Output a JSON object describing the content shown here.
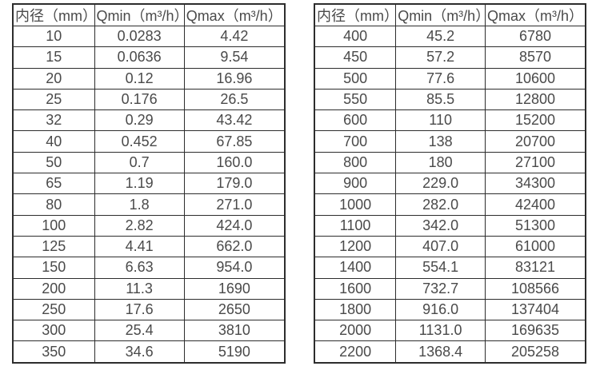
{
  "page": {
    "background_color": "#ffffff",
    "border_color": "#2d2d2d",
    "text_color": "#4a4a4a"
  },
  "tables": [
    {
      "name": "flow-table-small-diameters",
      "headers": [
        "内径（mm）",
        "Qmin（m³/h）",
        "Qmax（m³/h）"
      ],
      "rows": [
        [
          "10",
          "0.0283",
          "4.42"
        ],
        [
          "15",
          "0.0636",
          "9.54"
        ],
        [
          "20",
          "0.12",
          "16.96"
        ],
        [
          "25",
          "0.176",
          "26.5"
        ],
        [
          "32",
          "0.29",
          "43.42"
        ],
        [
          "40",
          "0.452",
          "67.85"
        ],
        [
          "50",
          "0.7",
          "160.0"
        ],
        [
          "65",
          "1.19",
          "179.0"
        ],
        [
          "80",
          "1.8",
          "271.0"
        ],
        [
          "100",
          "2.82",
          "424.0"
        ],
        [
          "125",
          "4.41",
          "662.0"
        ],
        [
          "150",
          "6.63",
          "954.0"
        ],
        [
          "200",
          "11.3",
          "1690"
        ],
        [
          "250",
          "17.6",
          "2650"
        ],
        [
          "300",
          "25.4",
          "3810"
        ],
        [
          "350",
          "34.6",
          "5190"
        ]
      ]
    },
    {
      "name": "flow-table-large-diameters",
      "headers": [
        "内径（mm）",
        "Qmin（m³/h）",
        "Qmax（m³/h）"
      ],
      "rows": [
        [
          "400",
          "45.2",
          "6780"
        ],
        [
          "450",
          "57.2",
          "8570"
        ],
        [
          "500",
          "77.6",
          "10600"
        ],
        [
          "550",
          "85.5",
          "12800"
        ],
        [
          "600",
          "110",
          "15200"
        ],
        [
          "700",
          "138",
          "20700"
        ],
        [
          "800",
          "180",
          "27100"
        ],
        [
          "900",
          "229.0",
          "34300"
        ],
        [
          "1000",
          "282.0",
          "42400"
        ],
        [
          "1100",
          "342.0",
          "51300"
        ],
        [
          "1200",
          "407.0",
          "61000"
        ],
        [
          "1400",
          "554.1",
          "83121"
        ],
        [
          "1600",
          "732.7",
          "108566"
        ],
        [
          "1800",
          "916.0",
          "137404"
        ],
        [
          "2000",
          "1131.0",
          "169635"
        ],
        [
          "2200",
          "1368.4",
          "205258"
        ]
      ]
    }
  ]
}
